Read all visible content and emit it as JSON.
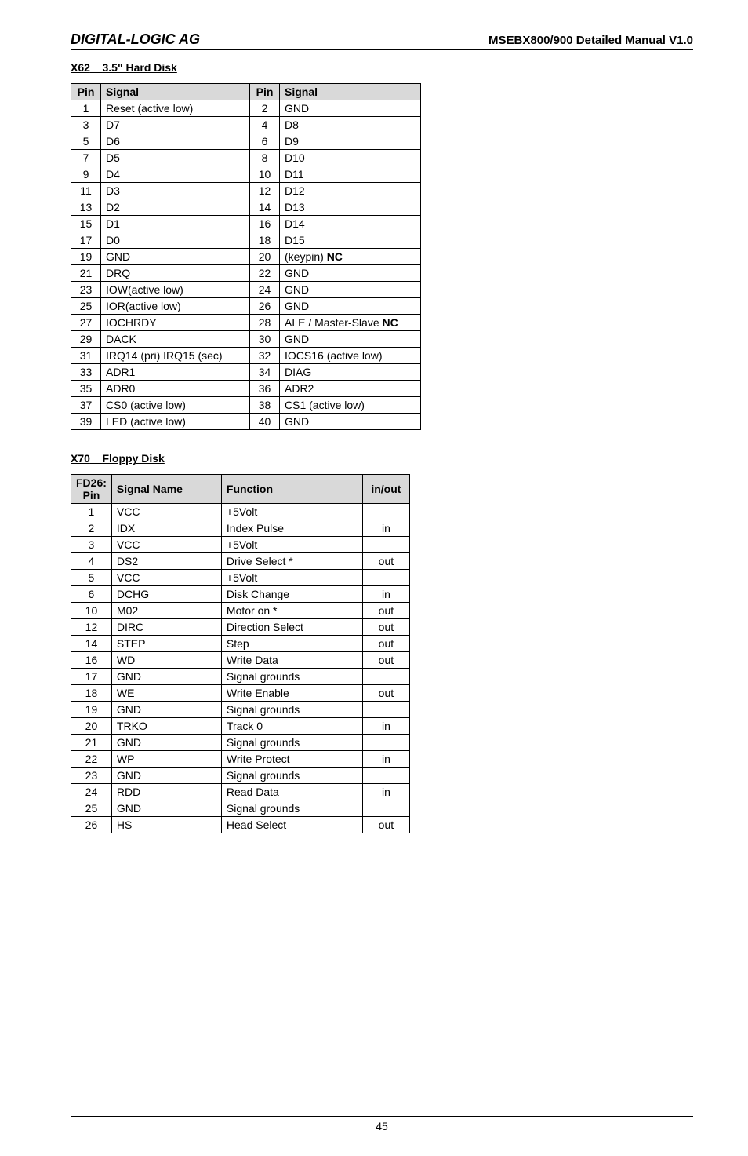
{
  "header": {
    "left": "DIGITAL-LOGIC AG",
    "right": "MSEBX800/900 Detailed Manual V1.0"
  },
  "sections": {
    "hd": {
      "code": "X62",
      "name": "3.5\" Hard Disk"
    },
    "fd": {
      "code": "X70",
      "name": "Floppy Disk"
    }
  },
  "hd_table": {
    "headers": [
      "Pin",
      "Signal",
      "Pin",
      "Signal"
    ],
    "rows": [
      [
        "1",
        "Reset (active low)",
        "2",
        "GND"
      ],
      [
        "3",
        "D7",
        "4",
        "D8"
      ],
      [
        "5",
        "D6",
        "6",
        "D9"
      ],
      [
        "7",
        "D5",
        "8",
        "D10"
      ],
      [
        "9",
        "D4",
        "10",
        "D11"
      ],
      [
        "11",
        "D3",
        "12",
        "D12"
      ],
      [
        "13",
        "D2",
        "14",
        "D13"
      ],
      [
        "15",
        "D1",
        "16",
        "D14"
      ],
      [
        "17",
        "D0",
        "18",
        "D15"
      ],
      [
        "19",
        "GND",
        "20",
        "(keypin) NC"
      ],
      [
        "21",
        "DRQ",
        "22",
        "GND"
      ],
      [
        "23",
        "IOW(active low)",
        "24",
        "GND"
      ],
      [
        "25",
        "IOR(active low)",
        "26",
        "GND"
      ],
      [
        "27",
        "IOCHRDY",
        "28",
        "ALE / Master-Slave NC"
      ],
      [
        "29",
        "DACK",
        "30",
        "GND"
      ],
      [
        "31",
        "IRQ14 (pri) IRQ15 (sec)",
        "32",
        "IOCS16 (active low)"
      ],
      [
        "33",
        "ADR1",
        "34",
        "DIAG"
      ],
      [
        "35",
        "ADR0",
        "36",
        "ADR2"
      ],
      [
        "37",
        "CS0 (active low)",
        "38",
        "CS1 (active low)"
      ],
      [
        "39",
        "LED (active low)",
        "40",
        "GND"
      ]
    ],
    "bold_col4_rows": [
      9,
      13
    ]
  },
  "fd_table": {
    "headers": [
      "FD26:\nPin",
      "Signal Name",
      "Function",
      "in/out"
    ],
    "rows": [
      [
        "1",
        "VCC",
        "+5Volt",
        ""
      ],
      [
        "2",
        "IDX",
        "Index Pulse",
        "in"
      ],
      [
        "3",
        "VCC",
        "+5Volt",
        ""
      ],
      [
        "4",
        "DS2",
        "Drive Select *",
        "out"
      ],
      [
        "5",
        "VCC",
        "+5Volt",
        ""
      ],
      [
        "6",
        "DCHG",
        "Disk Change",
        "in"
      ],
      [
        "10",
        "M02",
        "Motor on *",
        "out"
      ],
      [
        "12",
        "DIRC",
        "Direction Select",
        "out"
      ],
      [
        "14",
        "STEP",
        "Step",
        "out"
      ],
      [
        "16",
        "WD",
        "Write Data",
        "out"
      ],
      [
        "17",
        "GND",
        "Signal grounds",
        ""
      ],
      [
        "18",
        "WE",
        "Write Enable",
        "out"
      ],
      [
        "19",
        "GND",
        "Signal grounds",
        ""
      ],
      [
        "20",
        "TRKO",
        "Track 0",
        "in"
      ],
      [
        "21",
        "GND",
        "Signal grounds",
        ""
      ],
      [
        "22",
        "WP",
        "Write Protect",
        "in"
      ],
      [
        "23",
        "GND",
        "Signal grounds",
        ""
      ],
      [
        "24",
        "RDD",
        "Read Data",
        "in"
      ],
      [
        "25",
        "GND",
        "Signal grounds",
        ""
      ],
      [
        "26",
        "HS",
        "Head Select",
        "out"
      ]
    ]
  },
  "footer": {
    "page_number": "45"
  }
}
